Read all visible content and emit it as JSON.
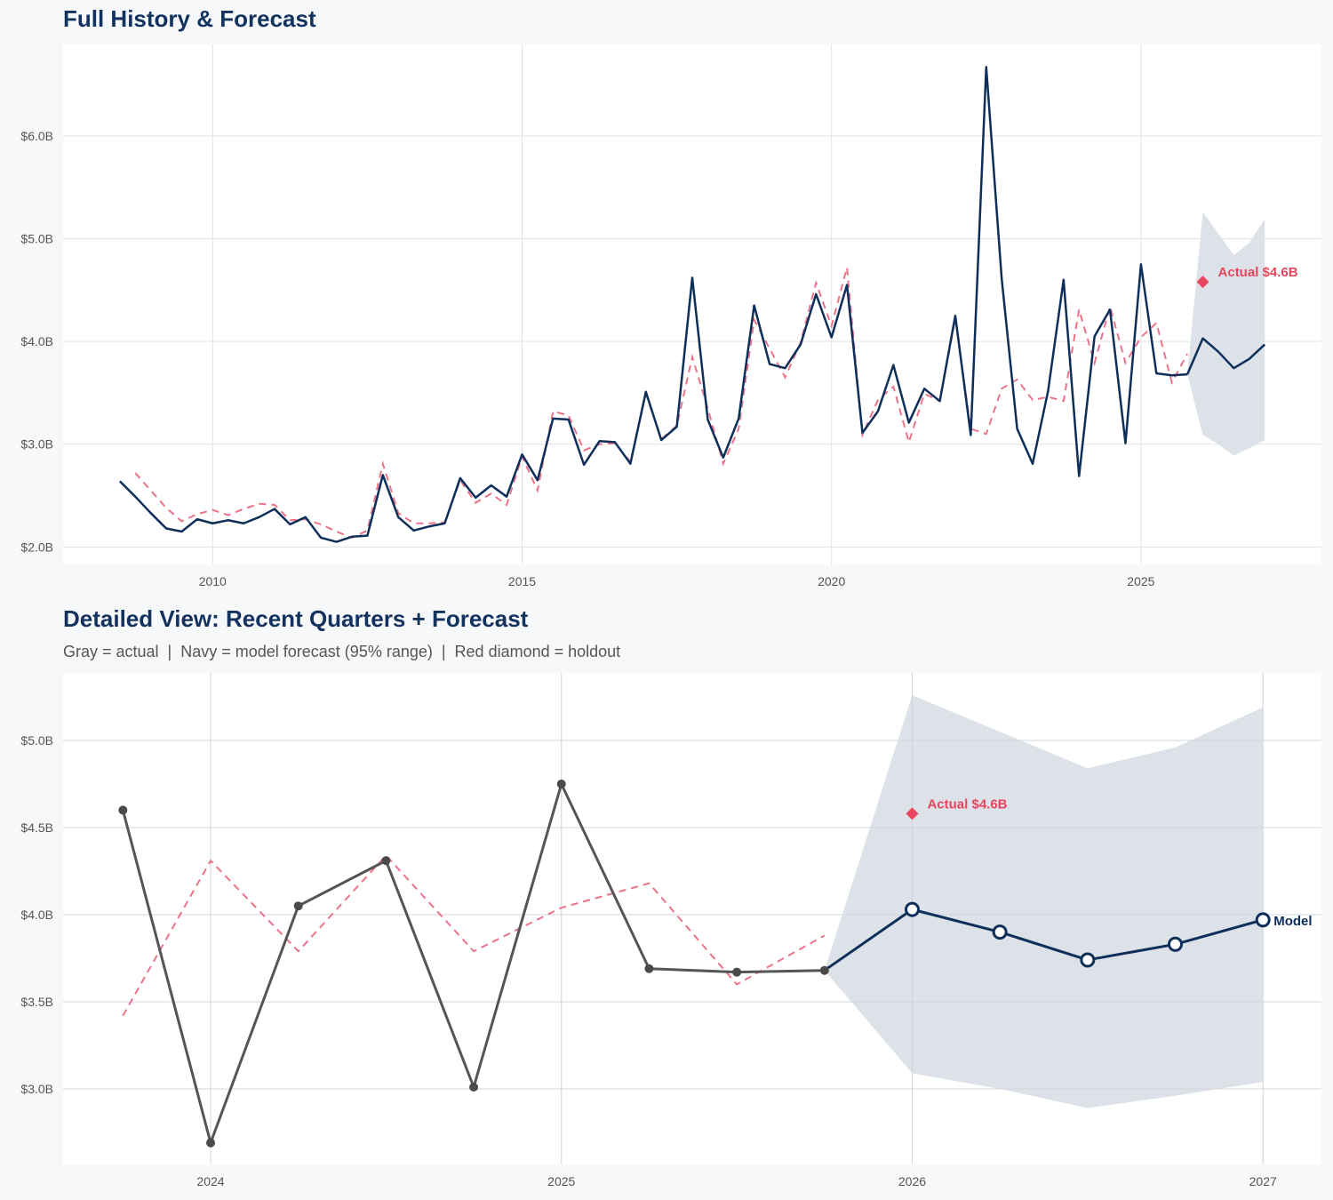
{
  "colors": {
    "actual_navy": "#0e2f5a",
    "actual_gray": "#555555",
    "fitted_red": "#ec7388",
    "holdout_red": "#e8465f",
    "band": "#dbe0e7",
    "title": "#13325e"
  },
  "chart_data": [
    {
      "type": "line",
      "title": "Full History & Forecast",
      "xlim": [
        "2007-08-01",
        "2027-12-01"
      ],
      "ylim": [
        1.83,
        6.89
      ],
      "y_unit": "billions USD",
      "x_ticks": [
        "2010",
        "2015",
        "2020",
        "2025"
      ],
      "y_ticks": [
        {
          "value": 2,
          "label": "$2.0B"
        },
        {
          "value": 3,
          "label": "$3.0B"
        },
        {
          "value": 4,
          "label": "$4.0B"
        },
        {
          "value": 5,
          "label": "$5.0B"
        },
        {
          "value": 6,
          "label": "$6.0B"
        }
      ],
      "grid": true,
      "actual": {
        "dates": [
          "2008-07-01",
          "2008-10-01",
          "2009-01-01",
          "2009-04-01",
          "2009-07-01",
          "2009-10-01",
          "2010-01-01",
          "2010-04-01",
          "2010-07-01",
          "2010-10-01",
          "2011-01-01",
          "2011-04-01",
          "2011-07-01",
          "2011-10-01",
          "2012-01-01",
          "2012-04-01",
          "2012-07-01",
          "2012-10-01",
          "2013-01-01",
          "2013-04-01",
          "2013-07-01",
          "2013-10-01",
          "2014-01-01",
          "2014-04-01",
          "2014-07-01",
          "2014-10-01",
          "2015-01-01",
          "2015-04-01",
          "2015-07-01",
          "2015-10-01",
          "2016-01-01",
          "2016-04-01",
          "2016-07-01",
          "2016-10-01",
          "2017-01-01",
          "2017-04-01",
          "2017-07-01",
          "2017-10-01",
          "2018-01-01",
          "2018-04-01",
          "2018-07-01",
          "2018-10-01",
          "2019-01-01",
          "2019-04-01",
          "2019-07-01",
          "2019-10-01",
          "2020-01-01",
          "2020-04-01",
          "2020-07-01",
          "2020-10-01",
          "2021-01-01",
          "2021-04-01",
          "2021-07-01",
          "2021-10-01",
          "2022-01-01",
          "2022-04-01",
          "2022-07-01",
          "2022-10-01",
          "2023-01-01",
          "2023-04-01",
          "2023-07-01",
          "2023-10-01",
          "2024-01-01",
          "2024-04-01",
          "2024-07-01",
          "2024-10-01",
          "2025-01-01",
          "2025-04-01",
          "2025-07-01",
          "2025-10-01"
        ],
        "values": [
          2.64,
          2.49,
          2.33,
          2.18,
          2.15,
          2.27,
          2.23,
          2.26,
          2.23,
          2.29,
          2.37,
          2.22,
          2.29,
          2.09,
          2.05,
          2.1,
          2.11,
          2.7,
          2.29,
          2.16,
          2.2,
          2.23,
          2.67,
          2.48,
          2.6,
          2.49,
          2.9,
          2.65,
          3.25,
          3.24,
          2.8,
          3.03,
          3.02,
          2.81,
          3.51,
          3.04,
          3.17,
          4.62,
          3.24,
          2.87,
          3.25,
          4.35,
          3.78,
          3.74,
          3.97,
          4.46,
          4.04,
          4.55,
          3.11,
          3.32,
          3.77,
          3.21,
          3.54,
          3.42,
          4.25,
          3.09,
          6.67,
          4.61,
          3.15,
          2.81,
          3.52,
          4.6,
          2.69,
          4.05,
          4.31,
          3.01,
          4.75,
          3.69,
          3.67,
          3.68
        ]
      },
      "fitted": {
        "dates": [
          "2008-10-01",
          "2009-01-01",
          "2009-04-01",
          "2009-07-01",
          "2009-10-01",
          "2010-01-01",
          "2010-04-01",
          "2010-07-01",
          "2010-10-01",
          "2011-01-01",
          "2011-04-01",
          "2011-07-01",
          "2011-10-01",
          "2012-01-01",
          "2012-04-01",
          "2012-07-01",
          "2012-10-01",
          "2013-01-01",
          "2013-04-01",
          "2013-07-01",
          "2013-10-01",
          "2014-01-01",
          "2014-04-01",
          "2014-07-01",
          "2014-10-01",
          "2015-01-01",
          "2015-04-01",
          "2015-07-01",
          "2015-10-01",
          "2016-01-01",
          "2016-04-01",
          "2016-07-01",
          "2016-10-01",
          "2017-01-01",
          "2017-04-01",
          "2017-07-01",
          "2017-10-01",
          "2018-01-01",
          "2018-04-01",
          "2018-07-01",
          "2018-10-01",
          "2019-01-01",
          "2019-04-01",
          "2019-07-01",
          "2019-10-01",
          "2020-01-01",
          "2020-04-01",
          "2020-07-01",
          "2020-10-01",
          "2021-01-01",
          "2021-04-01",
          "2021-07-01",
          "2021-10-01",
          "2022-01-01",
          "2022-04-01",
          "2022-07-01",
          "2022-10-01",
          "2023-01-01",
          "2023-04-01",
          "2023-07-01",
          "2023-10-01",
          "2024-01-01",
          "2024-04-01",
          "2024-07-01",
          "2024-10-01",
          "2025-01-01",
          "2025-04-01",
          "2025-07-01",
          "2025-10-01"
        ],
        "values": [
          2.72,
          2.55,
          2.38,
          2.25,
          2.32,
          2.36,
          2.31,
          2.37,
          2.42,
          2.41,
          2.26,
          2.27,
          2.22,
          2.15,
          2.09,
          2.16,
          2.81,
          2.33,
          2.23,
          2.23,
          2.24,
          2.65,
          2.43,
          2.52,
          2.41,
          2.88,
          2.55,
          3.32,
          3.28,
          2.94,
          3.0,
          3.01,
          2.83,
          3.49,
          3.05,
          3.18,
          3.85,
          3.35,
          2.81,
          3.15,
          4.21,
          3.93,
          3.65,
          3.99,
          4.57,
          4.15,
          4.72,
          3.09,
          3.43,
          3.56,
          3.02,
          3.49,
          3.42,
          4.22,
          3.15,
          3.1,
          3.54,
          3.63,
          3.43,
          3.46,
          3.42,
          4.31,
          3.79,
          4.34,
          3.79,
          4.04,
          4.18,
          3.6,
          3.88
        ]
      },
      "forecast": {
        "dates": [
          "2025-10-01",
          "2026-01-01",
          "2026-04-01",
          "2026-07-01",
          "2026-10-01",
          "2027-01-01"
        ],
        "values": [
          3.68,
          4.03,
          3.9,
          3.74,
          3.83,
          3.97
        ],
        "upper": [
          3.68,
          5.26,
          5.05,
          4.84,
          4.96,
          5.19
        ],
        "lower": [
          3.68,
          3.09,
          3.0,
          2.89,
          2.96,
          3.04
        ]
      },
      "holdout": {
        "date": "2026-01-01",
        "value": 4.58,
        "label": "Actual $4.6B"
      }
    },
    {
      "type": "line",
      "title": "Detailed View: Recent Quarters + Forecast",
      "subtitle": "Gray = actual  |  Navy = model forecast (95% range)  |  Red diamond = holdout",
      "xlim": [
        "2023-07-30",
        "2027-03-01"
      ],
      "ylim": [
        2.566,
        5.388
      ],
      "y_unit": "billions USD",
      "x_ticks": [
        "2024",
        "2025",
        "2026",
        "2027"
      ],
      "y_ticks": [
        {
          "value": 3.0,
          "label": "$3.0B"
        },
        {
          "value": 3.5,
          "label": "$3.5B"
        },
        {
          "value": 4.0,
          "label": "$4.0B"
        },
        {
          "value": 4.5,
          "label": "$4.5B"
        },
        {
          "value": 5.0,
          "label": "$5.0B"
        }
      ],
      "grid": true,
      "actual": {
        "dates": [
          "2023-10-01",
          "2024-01-01",
          "2024-04-01",
          "2024-07-01",
          "2024-10-01",
          "2025-01-01",
          "2025-04-01",
          "2025-07-01",
          "2025-10-01"
        ],
        "values": [
          4.6,
          2.69,
          4.05,
          4.31,
          3.01,
          4.75,
          3.69,
          3.67,
          3.68
        ]
      },
      "fitted": {
        "dates": [
          "2023-10-01",
          "2024-01-01",
          "2024-04-01",
          "2024-07-01",
          "2024-10-01",
          "2025-01-01",
          "2025-04-01",
          "2025-07-01",
          "2025-10-01"
        ],
        "values": [
          3.42,
          4.31,
          3.79,
          4.34,
          3.79,
          4.04,
          4.18,
          3.6,
          3.88
        ]
      },
      "forecast": {
        "dates": [
          "2025-10-01",
          "2026-01-01",
          "2026-04-01",
          "2026-07-01",
          "2026-10-01",
          "2027-01-01"
        ],
        "values": [
          3.68,
          4.03,
          3.9,
          3.74,
          3.83,
          3.97
        ],
        "upper": [
          3.68,
          5.26,
          5.05,
          4.84,
          4.96,
          5.19
        ],
        "lower": [
          3.68,
          3.09,
          3.0,
          2.89,
          2.96,
          3.04
        ],
        "label": "Model"
      },
      "holdout": {
        "date": "2026-01-01",
        "value": 4.58,
        "label": "Actual $4.6B"
      }
    }
  ]
}
